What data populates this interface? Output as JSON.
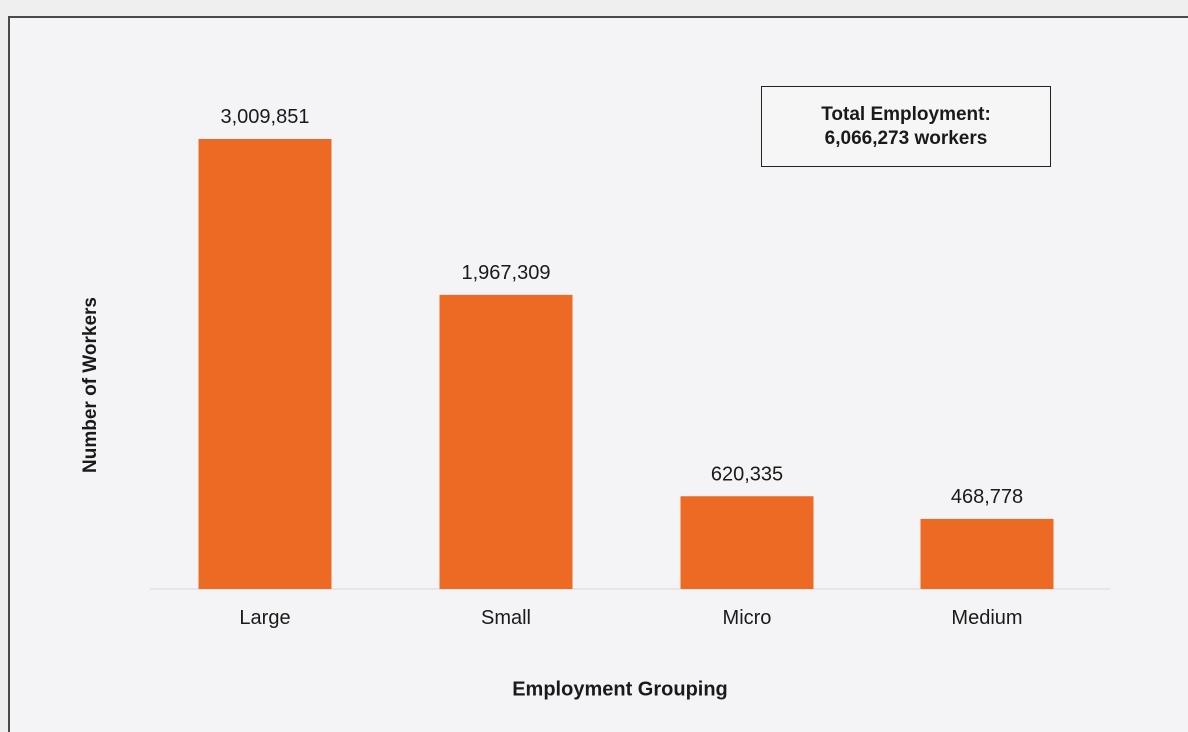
{
  "chart_data": {
    "type": "bar",
    "title": "",
    "xlabel": "Employment Grouping",
    "ylabel": "Number of Workers",
    "categories": [
      "Large",
      "Small",
      "Micro",
      "Medium"
    ],
    "values": [
      3009851,
      1967309,
      620335,
      468778
    ],
    "value_labels": [
      "3,009,851",
      "1,967,309",
      "620,335",
      "468,778"
    ],
    "ylim": [
      0,
      3009851
    ],
    "grid": false,
    "legend": "none",
    "bar_color": "#ec6a24",
    "annotation": {
      "line1": "Total Employment:",
      "line2": "6,066,273 workers"
    }
  }
}
